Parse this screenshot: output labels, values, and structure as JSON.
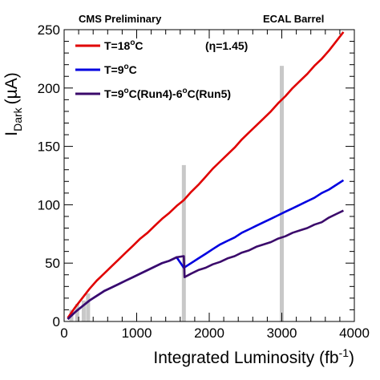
{
  "chart_data": {
    "type": "line",
    "header_left": "CMS Preliminary",
    "header_right": "ECAL Barrel",
    "annotation": "(η=1.45)",
    "xlabel": "Integrated Luminosity (fb",
    "xlabel_sup": "-1",
    "xlabel_end": ")",
    "ylabel_main": "I",
    "ylabel_sub": "Dark",
    "ylabel_unit": "(µA)",
    "xlim": [
      0,
      4000
    ],
    "ylim": [
      0,
      250
    ],
    "xticks": [
      0,
      1000,
      2000,
      3000,
      4000
    ],
    "yticks": [
      0,
      50,
      100,
      150,
      200,
      250
    ],
    "grid": false,
    "legend_position": "top-left",
    "series": [
      {
        "name": "T=18°C",
        "legend_parts": [
          "T=18",
          "o",
          "C"
        ],
        "color": "#e00000",
        "x": [
          50,
          150,
          250,
          350,
          450,
          550,
          650,
          750,
          850,
          950,
          1050,
          1150,
          1250,
          1350,
          1450,
          1550,
          1650,
          1750,
          1850,
          1950,
          2050,
          2150,
          2250,
          2350,
          2450,
          2550,
          2650,
          2750,
          2850,
          2950,
          3050,
          3150,
          3250,
          3350,
          3450,
          3550,
          3650,
          3750,
          3850
        ],
        "y": [
          3,
          12,
          20,
          28,
          35,
          41,
          47,
          53,
          59,
          65,
          71,
          76,
          82,
          88,
          93,
          99,
          104,
          111,
          117,
          124,
          131,
          137,
          143,
          149,
          156,
          162,
          168,
          174,
          180,
          187,
          193,
          200,
          206,
          212,
          219,
          225,
          232,
          240,
          248
        ]
      },
      {
        "name": "T=9°C",
        "legend_parts": [
          "T=9",
          "o",
          "C"
        ],
        "color": "#0000e0",
        "x": [
          50,
          150,
          250,
          350,
          450,
          550,
          650,
          750,
          850,
          950,
          1050,
          1150,
          1250,
          1350,
          1450,
          1550,
          1650,
          1750,
          1850,
          1950,
          2050,
          2150,
          2250,
          2350,
          2450,
          2550,
          2650,
          2750,
          2850,
          2950,
          3050,
          3150,
          3250,
          3350,
          3450,
          3550,
          3650,
          3750,
          3850
        ],
        "y": [
          2,
          8,
          13,
          18,
          22,
          26,
          29,
          32,
          35,
          38,
          41,
          44,
          47,
          50,
          52,
          55,
          46,
          50,
          54,
          58,
          62,
          66,
          69,
          72,
          76,
          79,
          82,
          85,
          88,
          91,
          94,
          97,
          100,
          103,
          106,
          110,
          113,
          117,
          121
        ]
      },
      {
        "name": "T=9°C(Run4)-6°C(Run5)",
        "legend_parts": [
          "T=9",
          "o",
          "C(Run4)-6",
          "o",
          "C(Run5)"
        ],
        "color": "#3b0a6b",
        "x": [
          50,
          150,
          250,
          350,
          450,
          550,
          650,
          750,
          850,
          950,
          1050,
          1150,
          1250,
          1350,
          1450,
          1550,
          1650,
          1660,
          1750,
          1850,
          1950,
          2050,
          2150,
          2250,
          2350,
          2450,
          2550,
          2650,
          2750,
          2850,
          2950,
          3050,
          3150,
          3250,
          3350,
          3450,
          3550,
          3650,
          3750,
          3850
        ],
        "y": [
          2,
          8,
          13,
          18,
          22,
          26,
          29,
          32,
          35,
          38,
          41,
          44,
          47,
          50,
          52,
          55,
          56,
          38,
          41,
          44,
          46,
          49,
          51,
          54,
          56,
          59,
          61,
          64,
          66,
          68,
          71,
          73,
          76,
          78,
          80,
          83,
          85,
          89,
          92,
          95
        ]
      }
    ],
    "gray_bars": [
      {
        "x": 100,
        "y": 10
      },
      {
        "x": 180,
        "y": 15
      },
      {
        "x": 270,
        "y": 18
      },
      {
        "x": 330,
        "y": 24
      },
      {
        "x": 1650,
        "y": 134
      },
      {
        "x": 3000,
        "y": 219
      }
    ]
  }
}
